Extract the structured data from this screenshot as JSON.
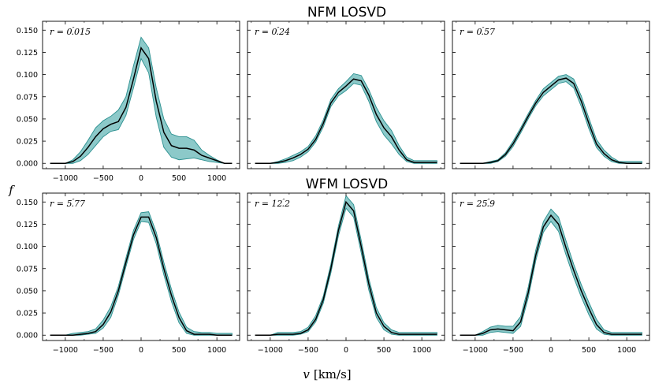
{
  "figure": {
    "row_titles": [
      "NFM LOSVD",
      "WFM LOSVD"
    ],
    "ylabel": "f",
    "xlabel": "v [km/s]",
    "ylabel_symbol": "f",
    "xlabel_symbol": "v",
    "xlabel_unit": "[km/s]"
  },
  "colors": {
    "band_fill": "#8cc9c9",
    "band_edge": "#2a8f8f",
    "line": "#000000"
  },
  "chart_data": [
    {
      "type": "line",
      "panel": "NFM r=0.015",
      "label_prefix": "r = 0",
      "label_suffix": "015",
      "x": [
        -1200,
        -1000,
        -900,
        -800,
        -700,
        -600,
        -500,
        -400,
        -300,
        -200,
        -100,
        0,
        100,
        200,
        300,
        400,
        500,
        600,
        700,
        800,
        900,
        1000,
        1100,
        1200
      ],
      "y": [
        0,
        0,
        0.002,
        0.008,
        0.018,
        0.03,
        0.039,
        0.044,
        0.047,
        0.063,
        0.095,
        0.13,
        0.118,
        0.07,
        0.035,
        0.02,
        0.017,
        0.017,
        0.015,
        0.009,
        0.006,
        0.003,
        0,
        0
      ],
      "lower": [
        0,
        0,
        0,
        0.003,
        0.01,
        0.02,
        0.03,
        0.036,
        0.038,
        0.054,
        0.085,
        0.118,
        0.102,
        0.052,
        0.018,
        0.007,
        0.004,
        0.005,
        0.006,
        0.004,
        0.002,
        0.001,
        0,
        0
      ],
      "upper": [
        0,
        0,
        0.004,
        0.013,
        0.026,
        0.04,
        0.048,
        0.053,
        0.06,
        0.075,
        0.11,
        0.142,
        0.13,
        0.085,
        0.05,
        0.033,
        0.03,
        0.03,
        0.026,
        0.015,
        0.009,
        0.004,
        0,
        0
      ],
      "xlim": [
        -1300,
        1300
      ],
      "ylim": [
        -0.006,
        0.16
      ],
      "yticks": [
        "0.000",
        "0.025",
        "0.050",
        "0.075",
        "0.100",
        "0.125",
        "0.150"
      ],
      "xticks": [
        "−1000",
        "−500",
        "0",
        "500",
        "1000"
      ]
    },
    {
      "type": "line",
      "panel": "NFM r=0.24",
      "label_prefix": "r = 0",
      "label_suffix": "24",
      "x": [
        -1200,
        -1000,
        -900,
        -800,
        -700,
        -600,
        -500,
        -400,
        -300,
        -200,
        -100,
        0,
        100,
        200,
        300,
        400,
        500,
        600,
        700,
        800,
        900,
        1000,
        1100,
        1200
      ],
      "y": [
        0,
        0,
        0.001,
        0.003,
        0.006,
        0.01,
        0.016,
        0.027,
        0.045,
        0.068,
        0.08,
        0.087,
        0.095,
        0.093,
        0.077,
        0.055,
        0.04,
        0.03,
        0.015,
        0.004,
        0.001,
        0.001,
        0.001,
        0.001
      ],
      "lower": [
        0,
        0,
        0,
        0.001,
        0.003,
        0.007,
        0.013,
        0.024,
        0.041,
        0.064,
        0.076,
        0.082,
        0.09,
        0.088,
        0.07,
        0.047,
        0.032,
        0.022,
        0.01,
        0.002,
        0,
        0,
        0,
        0
      ],
      "upper": [
        0,
        0,
        0.002,
        0.005,
        0.009,
        0.013,
        0.019,
        0.031,
        0.049,
        0.072,
        0.084,
        0.092,
        0.101,
        0.099,
        0.083,
        0.063,
        0.048,
        0.037,
        0.02,
        0.007,
        0.003,
        0.003,
        0.003,
        0.003
      ],
      "xlim": [
        -1300,
        1300
      ],
      "ylim": [
        -0.006,
        0.16
      ],
      "yticks": [],
      "xticks": []
    },
    {
      "type": "line",
      "panel": "NFM r=0.57",
      "label_prefix": "r = 0",
      "label_suffix": "57",
      "x": [
        -1200,
        -1000,
        -900,
        -800,
        -700,
        -600,
        -500,
        -400,
        -300,
        -200,
        -100,
        0,
        100,
        200,
        300,
        400,
        500,
        600,
        700,
        800,
        900,
        1000,
        1100,
        1200
      ],
      "y": [
        0,
        0,
        0,
        0.001,
        0.003,
        0.01,
        0.022,
        0.037,
        0.053,
        0.068,
        0.08,
        0.087,
        0.094,
        0.096,
        0.09,
        0.07,
        0.045,
        0.022,
        0.011,
        0.004,
        0.001,
        0,
        0,
        0
      ],
      "lower": [
        0,
        0,
        0,
        0,
        0.002,
        0.008,
        0.019,
        0.034,
        0.05,
        0.065,
        0.076,
        0.083,
        0.09,
        0.092,
        0.085,
        0.064,
        0.039,
        0.018,
        0.008,
        0.002,
        0,
        0,
        0,
        0
      ],
      "upper": [
        0,
        0,
        0,
        0.002,
        0.004,
        0.012,
        0.025,
        0.04,
        0.056,
        0.071,
        0.084,
        0.091,
        0.098,
        0.1,
        0.095,
        0.076,
        0.051,
        0.027,
        0.015,
        0.007,
        0.002,
        0.002,
        0.002,
        0.002
      ],
      "xlim": [
        -1300,
        1300
      ],
      "ylim": [
        -0.006,
        0.16
      ],
      "yticks": [],
      "xticks": []
    },
    {
      "type": "line",
      "panel": "WFM r=5.77",
      "label_prefix": "r = 5",
      "label_suffix": "77",
      "x": [
        -1200,
        -1000,
        -900,
        -800,
        -700,
        -600,
        -500,
        -400,
        -300,
        -200,
        -100,
        0,
        100,
        200,
        300,
        400,
        500,
        600,
        700,
        800,
        900,
        1000,
        1100,
        1200
      ],
      "y": [
        0,
        0,
        0,
        0.001,
        0.002,
        0.004,
        0.012,
        0.026,
        0.05,
        0.082,
        0.113,
        0.133,
        0.133,
        0.11,
        0.075,
        0.045,
        0.02,
        0.005,
        0.001,
        0.001,
        0.001,
        0,
        0,
        0
      ],
      "lower": [
        0,
        0,
        0,
        0,
        0.001,
        0.002,
        0.008,
        0.02,
        0.045,
        0.077,
        0.108,
        0.128,
        0.127,
        0.103,
        0.068,
        0.038,
        0.014,
        0.002,
        0,
        0,
        0,
        0,
        0,
        0
      ],
      "upper": [
        0,
        0,
        0.002,
        0.003,
        0.004,
        0.007,
        0.017,
        0.032,
        0.055,
        0.087,
        0.118,
        0.138,
        0.139,
        0.116,
        0.082,
        0.052,
        0.026,
        0.009,
        0.004,
        0.003,
        0.003,
        0.002,
        0.002,
        0.002
      ],
      "xlim": [
        -1300,
        1300
      ],
      "ylim": [
        -0.006,
        0.16
      ],
      "yticks": [
        "0.000",
        "0.025",
        "0.050",
        "0.075",
        "0.100",
        "0.125",
        "0.150"
      ],
      "xticks": [
        "−1000",
        "−500",
        "0",
        "500",
        "1000"
      ]
    },
    {
      "type": "line",
      "panel": "WFM r=12.2",
      "label_prefix": "r = 12",
      "label_suffix": "2",
      "x": [
        -1200,
        -1000,
        -900,
        -800,
        -700,
        -600,
        -500,
        -400,
        -300,
        -200,
        -100,
        0,
        100,
        200,
        300,
        400,
        500,
        600,
        700,
        800,
        900,
        1000,
        1100,
        1200
      ],
      "y": [
        0,
        0,
        0.001,
        0.001,
        0.001,
        0.002,
        0.006,
        0.018,
        0.04,
        0.075,
        0.118,
        0.15,
        0.14,
        0.1,
        0.058,
        0.025,
        0.01,
        0.003,
        0.001,
        0.001,
        0.001,
        0.001,
        0.001,
        0.001
      ],
      "lower": [
        0,
        0,
        0,
        0,
        0,
        0.001,
        0.004,
        0.015,
        0.036,
        0.07,
        0.112,
        0.143,
        0.133,
        0.093,
        0.051,
        0.02,
        0.006,
        0.001,
        0,
        0,
        0,
        0,
        0,
        0
      ],
      "upper": [
        0,
        0,
        0.003,
        0.003,
        0.003,
        0.004,
        0.009,
        0.022,
        0.044,
        0.08,
        0.123,
        0.157,
        0.147,
        0.107,
        0.064,
        0.031,
        0.014,
        0.006,
        0.003,
        0.003,
        0.003,
        0.003,
        0.003,
        0.003
      ],
      "xlim": [
        -1300,
        1300
      ],
      "ylim": [
        -0.006,
        0.16
      ],
      "yticks": [],
      "xticks": [
        "−1000",
        "−500",
        "0",
        "500",
        "1000"
      ]
    },
    {
      "type": "line",
      "panel": "WFM r=25.9",
      "label_prefix": "r = 25",
      "label_suffix": "9",
      "x": [
        -1200,
        -1000,
        -900,
        -800,
        -700,
        -600,
        -500,
        -400,
        -300,
        -200,
        -100,
        0,
        100,
        200,
        300,
        400,
        500,
        600,
        700,
        800,
        900,
        1000,
        1100,
        1200
      ],
      "y": [
        0,
        0,
        0.002,
        0.006,
        0.007,
        0.006,
        0.005,
        0.015,
        0.048,
        0.09,
        0.122,
        0.135,
        0.125,
        0.098,
        0.073,
        0.05,
        0.03,
        0.012,
        0.003,
        0.001,
        0.001,
        0.001,
        0.001,
        0.001
      ],
      "lower": [
        0,
        0,
        0,
        0.003,
        0.004,
        0.003,
        0.002,
        0.01,
        0.042,
        0.084,
        0.116,
        0.128,
        0.117,
        0.09,
        0.065,
        0.043,
        0.023,
        0.007,
        0.001,
        0,
        0,
        0,
        0,
        0
      ],
      "upper": [
        0,
        0,
        0.004,
        0.009,
        0.011,
        0.01,
        0.01,
        0.021,
        0.054,
        0.096,
        0.128,
        0.142,
        0.133,
        0.106,
        0.08,
        0.057,
        0.037,
        0.018,
        0.006,
        0.003,
        0.003,
        0.003,
        0.003,
        0.003
      ],
      "xlim": [
        -1300,
        1300
      ],
      "ylim": [
        -0.006,
        0.16
      ],
      "yticks": [],
      "xticks": [
        "−1000",
        "−500",
        "0",
        "500",
        "1000"
      ]
    }
  ]
}
